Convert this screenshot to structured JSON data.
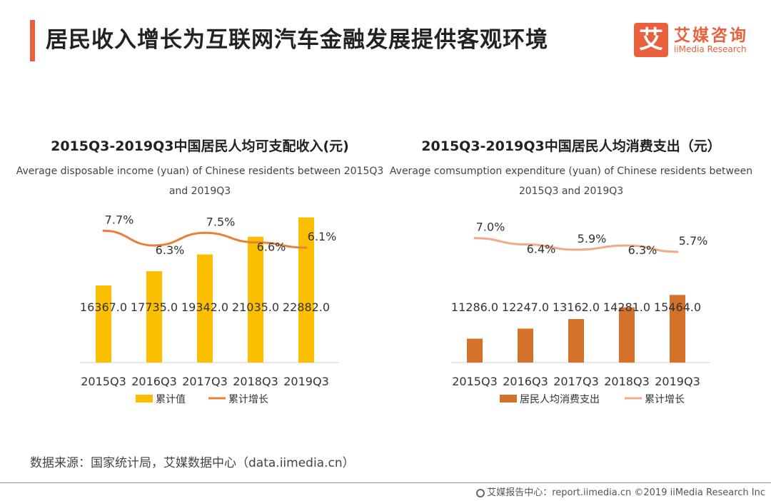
{
  "header": {
    "title": "居民收入增长为互联网汽车金融发展提供客观环境",
    "logo_mark": "艾",
    "logo_cn": "艾媒咨询",
    "logo_en": "iiMedia Research"
  },
  "chart_data": [
    {
      "type": "bar",
      "title": "2015Q3-2019Q3中国居民人均可支配收入(元)",
      "subtitle": "Average disposable income (yuan) of Chinese residents between 2015Q3 and 2019Q3",
      "categories": [
        "2015Q3",
        "2016Q3",
        "2017Q3",
        "2018Q3",
        "2019Q3"
      ],
      "series": [
        {
          "name": "累计值",
          "type": "bar",
          "values": [
            16367.0,
            17735.0,
            19342.0,
            21035.0,
            22882.0
          ],
          "labels": [
            "16367.0",
            "17735.0",
            "19342.0",
            "21035.0",
            "22882.0"
          ],
          "color": "#fbbf00"
        },
        {
          "name": "累计增长",
          "type": "line",
          "values": [
            7.7,
            6.3,
            7.5,
            6.6,
            6.1
          ],
          "labels": [
            "7.7%",
            "6.3%",
            "7.5%",
            "6.6%",
            "6.1%"
          ],
          "color": "#e8803c"
        }
      ],
      "grid": false,
      "legend": "bottom"
    },
    {
      "type": "bar",
      "title": "2015Q3-2019Q3中国居民人均消费支出（元）",
      "subtitle": "Average comsumption expenditure (yuan) of Chinese residents between 2015Q3 and 2019Q3",
      "categories": [
        "2015Q3",
        "2016Q3",
        "2017Q3",
        "2018Q3",
        "2019Q3"
      ],
      "series": [
        {
          "name": "居民人均消费支出",
          "type": "bar",
          "values": [
            11286.0,
            12247.0,
            13162.0,
            14281.0,
            15464.0
          ],
          "labels": [
            "11286.0",
            "12247.0",
            "13162.0",
            "14281.0",
            "15464.0"
          ],
          "color": "#d4712b"
        },
        {
          "name": "累计增长",
          "type": "line",
          "values": [
            7.0,
            6.4,
            5.9,
            6.3,
            5.7
          ],
          "labels": [
            "7.0%",
            "6.4%",
            "5.9%",
            "6.3%",
            "5.7%"
          ],
          "color": "#f0a98a"
        }
      ],
      "grid": false,
      "legend": "bottom"
    }
  ],
  "source": "数据来源：国家统计局，艾媒数据中心（data.iimedia.cn）",
  "footer": "艾媒报告中心：report.iimedia.cn ©2019 iiMedia Research Inc"
}
